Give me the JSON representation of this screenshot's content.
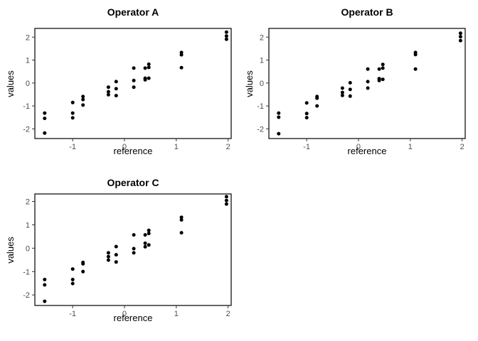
{
  "colors": {
    "background": "#ffffff",
    "point": "#000000",
    "panel_border": "#000000",
    "tick_mark": "#333333",
    "tick_label": "#4d4d4d",
    "title_text": "#000000",
    "axis_title_text": "#000000"
  },
  "chart_data": [
    {
      "type": "scatter",
      "title": "Operator A",
      "xlabel": "reference",
      "ylabel": "values",
      "grid": false,
      "legend": "none",
      "xlim": [
        -1.73,
        2.06
      ],
      "ylim": [
        -2.42,
        2.38
      ],
      "xticks": [
        -1,
        0,
        1,
        2
      ],
      "yticks": [
        -2,
        -1,
        0,
        1,
        2
      ],
      "points": [
        {
          "x": -1.54,
          "ys": [
            -1.31,
            -1.54,
            -2.18
          ]
        },
        {
          "x": -1.0,
          "ys": [
            -0.85,
            -1.31,
            -1.52
          ]
        },
        {
          "x": -0.8,
          "ys": [
            -0.59,
            -0.72,
            -0.96
          ]
        },
        {
          "x": -0.31,
          "ys": [
            -0.18,
            -0.38,
            -0.51
          ]
        },
        {
          "x": -0.16,
          "ys": [
            0.06,
            -0.25,
            -0.55
          ]
        },
        {
          "x": 0.18,
          "ys": [
            0.65,
            0.11,
            -0.18
          ]
        },
        {
          "x": 0.4,
          "ys": [
            0.65,
            0.21,
            0.14
          ]
        },
        {
          "x": 0.47,
          "ys": [
            0.82,
            0.68,
            0.21
          ]
        },
        {
          "x": 1.1,
          "ys": [
            1.33,
            1.23,
            0.67
          ]
        },
        {
          "x": 1.97,
          "ys": [
            2.22,
            2.05,
            1.91
          ]
        }
      ]
    },
    {
      "type": "scatter",
      "title": "Operator B",
      "xlabel": "reference",
      "ylabel": "values",
      "grid": false,
      "legend": "none",
      "xlim": [
        -1.73,
        2.06
      ],
      "ylim": [
        -2.42,
        2.38
      ],
      "xticks": [
        -1,
        0,
        1,
        2
      ],
      "yticks": [
        -2,
        -1,
        0,
        1,
        2
      ],
      "points": [
        {
          "x": -1.54,
          "ys": [
            -1.31,
            -1.49,
            -2.21
          ]
        },
        {
          "x": -1.0,
          "ys": [
            -0.87,
            -1.33,
            -1.51
          ]
        },
        {
          "x": -0.8,
          "ys": [
            -0.59,
            -0.66,
            -1.0
          ]
        },
        {
          "x": -0.31,
          "ys": [
            -0.22,
            -0.41,
            -0.54
          ]
        },
        {
          "x": -0.16,
          "ys": [
            0.01,
            -0.28,
            -0.57
          ]
        },
        {
          "x": 0.18,
          "ys": [
            0.61,
            0.06,
            -0.22
          ]
        },
        {
          "x": 0.4,
          "ys": [
            0.61,
            0.19,
            0.11
          ]
        },
        {
          "x": 0.47,
          "ys": [
            0.81,
            0.65,
            0.16
          ]
        },
        {
          "x": 1.1,
          "ys": [
            1.33,
            1.24,
            0.61
          ]
        },
        {
          "x": 1.97,
          "ys": [
            2.17,
            2.02,
            1.85
          ]
        }
      ]
    },
    {
      "type": "scatter",
      "title": "Operator C",
      "xlabel": "reference",
      "ylabel": "values",
      "grid": false,
      "legend": "none",
      "xlim": [
        -1.73,
        2.06
      ],
      "ylim": [
        -2.45,
        2.32
      ],
      "xticks": [
        -1,
        0,
        1,
        2
      ],
      "yticks": [
        -2,
        -1,
        0,
        1,
        2
      ],
      "points": [
        {
          "x": -1.54,
          "ys": [
            -1.34,
            -1.57,
            -2.27
          ]
        },
        {
          "x": -1.0,
          "ys": [
            -0.89,
            -1.34,
            -1.51
          ]
        },
        {
          "x": -0.8,
          "ys": [
            -0.61,
            -0.67,
            -1.0
          ]
        },
        {
          "x": -0.31,
          "ys": [
            -0.2,
            -0.36,
            -0.51
          ]
        },
        {
          "x": -0.16,
          "ys": [
            0.07,
            -0.28,
            -0.59
          ]
        },
        {
          "x": 0.18,
          "ys": [
            0.57,
            -0.02,
            -0.2
          ]
        },
        {
          "x": 0.4,
          "ys": [
            0.57,
            0.21,
            0.06
          ]
        },
        {
          "x": 0.47,
          "ys": [
            0.76,
            0.63,
            0.14
          ]
        },
        {
          "x": 1.1,
          "ys": [
            1.32,
            1.21,
            0.66
          ]
        },
        {
          "x": 1.97,
          "ys": [
            2.2,
            2.04,
            1.89
          ]
        }
      ]
    }
  ]
}
